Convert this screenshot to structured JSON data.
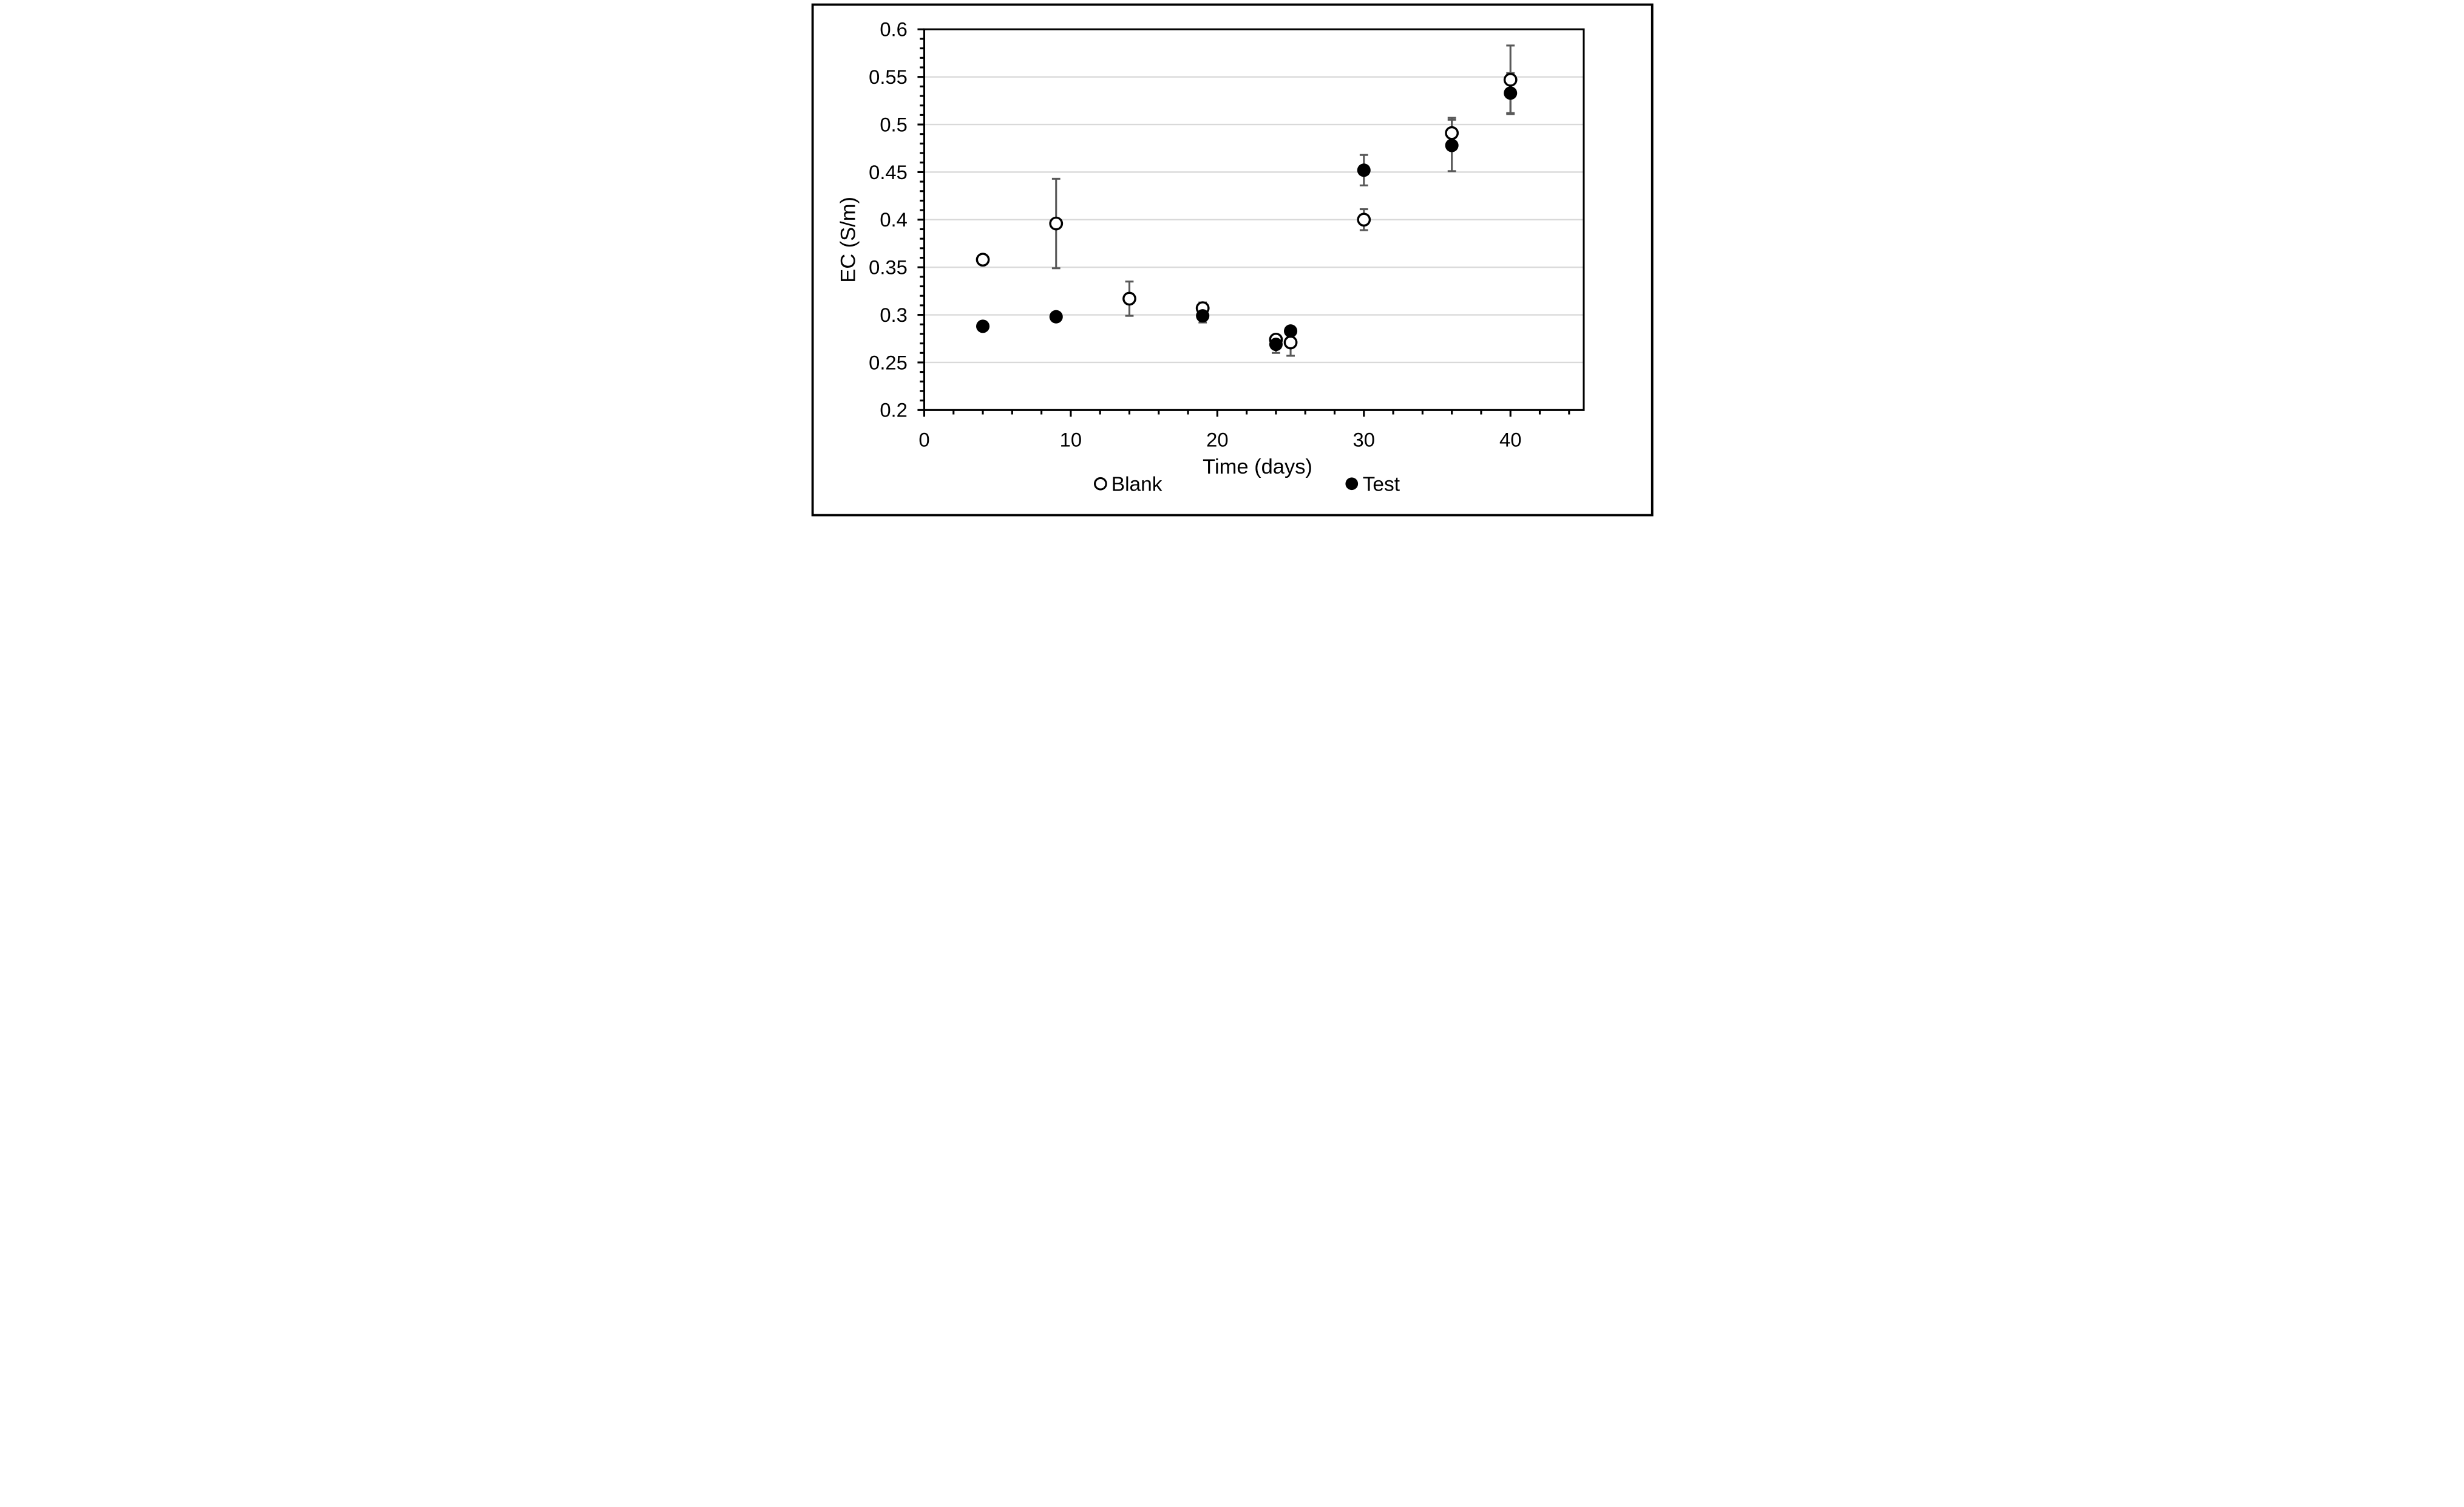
{
  "figure": {
    "background": "#ffffff",
    "border_color": "#000000"
  },
  "chart_data": {
    "type": "scatter",
    "title": "",
    "xlabel": "Time (days)",
    "ylabel": "EC (S/m)",
    "xlim": [
      0,
      45
    ],
    "ylim": [
      0.2,
      0.6
    ],
    "x_major_ticks": [
      0,
      10,
      20,
      30,
      40
    ],
    "x_minor_step": 2,
    "y_major_step": 0.05,
    "y_minor_step": 0.01,
    "grid": "horizontal gridlines at 0.25 to 0.55 step 0.05",
    "legend_position": "bottom",
    "legend": [
      {
        "label": "Blank",
        "marker": "open-circle"
      },
      {
        "label": "Test",
        "marker": "filled-circle"
      }
    ],
    "series": [
      {
        "name": "Blank",
        "marker": "open-circle",
        "points": [
          {
            "x": 4,
            "y": 0.358,
            "err": 0
          },
          {
            "x": 9,
            "y": 0.396,
            "err": 0.047
          },
          {
            "x": 14,
            "y": 0.317,
            "err": 0.018
          },
          {
            "x": 19,
            "y": 0.307,
            "err": 0.006
          },
          {
            "x": 24,
            "y": 0.274,
            "err": 0.005
          },
          {
            "x": 25,
            "y": 0.271,
            "err": 0.014
          },
          {
            "x": 30,
            "y": 0.4,
            "err": 0.011
          },
          {
            "x": 36,
            "y": 0.491,
            "err": 0.016
          },
          {
            "x": 40,
            "y": 0.547,
            "err": 0.036
          }
        ]
      },
      {
        "name": "Test",
        "marker": "filled-circle",
        "points": [
          {
            "x": 4,
            "y": 0.288,
            "err": 0
          },
          {
            "x": 9,
            "y": 0.298,
            "err": 0
          },
          {
            "x": 19,
            "y": 0.299,
            "err": 0.007
          },
          {
            "x": 24,
            "y": 0.269,
            "err": 0.009
          },
          {
            "x": 25,
            "y": 0.283,
            "err": 0.004
          },
          {
            "x": 30,
            "y": 0.452,
            "err": 0.016
          },
          {
            "x": 36,
            "y": 0.478,
            "err": 0.027
          },
          {
            "x": 40,
            "y": 0.533,
            "err": 0.021
          }
        ]
      }
    ]
  },
  "style": {
    "gridline_color": "#d9d9d9",
    "error_bar_color": "#595959",
    "axis_color": "#000000",
    "marker_color": "#000000"
  }
}
